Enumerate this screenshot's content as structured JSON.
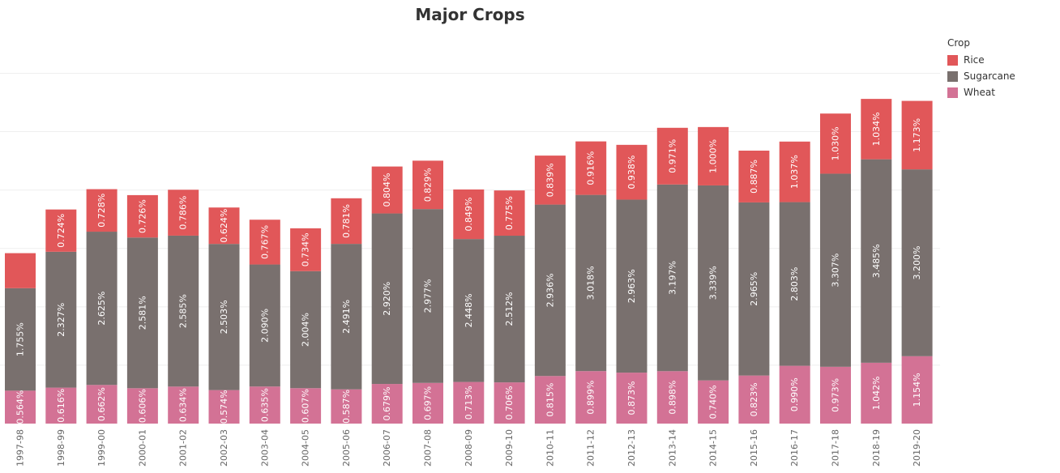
{
  "title": "Major Crops",
  "legend": {
    "title": "Crop",
    "items": [
      {
        "label": "Rice",
        "color": "#E15759"
      },
      {
        "label": "Sugarcane",
        "color": "#79706E"
      },
      {
        "label": "Wheat",
        "color": "#D37295"
      }
    ]
  },
  "chart_data": {
    "type": "bar",
    "stacked": true,
    "title": "Major Crops",
    "xlabel": "",
    "ylabel": "",
    "ylim": [
      0,
      6.7
    ],
    "grid": true,
    "legend_position": "right",
    "categories": [
      "1997-98",
      "1998-99",
      "1999-00",
      "2000-01",
      "2001-02",
      "2002-03",
      "2003-04",
      "2004-05",
      "2005-06",
      "2006-07",
      "2007-08",
      "2008-09",
      "2009-10",
      "2010-11",
      "2011-12",
      "2012-13",
      "2013-14",
      "2014-15",
      "2015-16",
      "2016-17",
      "2017-18",
      "2018-19",
      "2019-20"
    ],
    "series": [
      {
        "name": "Wheat",
        "color": "#D37295",
        "values": [
          0.564,
          0.616,
          0.662,
          0.606,
          0.634,
          0.574,
          0.635,
          0.607,
          0.587,
          0.679,
          0.697,
          0.713,
          0.706,
          0.815,
          0.899,
          0.873,
          0.898,
          0.74,
          0.823,
          0.99,
          0.973,
          1.042,
          1.154
        ],
        "labels": [
          "0.564%",
          "0.616%",
          "0.662%",
          "0.606%",
          "0.634%",
          "0.574%",
          "0.635%",
          "0.607%",
          "0.587%",
          "0.679%",
          "0.697%",
          "0.713%",
          "0.706%",
          "0.815%",
          "0.899%",
          "0.873%",
          "0.898%",
          "0.740%",
          "0.823%",
          "0.990%",
          "0.973%",
          "1.042%",
          "1.154%"
        ]
      },
      {
        "name": "Sugarcane",
        "color": "#79706E",
        "values": [
          1.755,
          2.327,
          2.625,
          2.581,
          2.585,
          2.503,
          2.09,
          2.004,
          2.491,
          2.92,
          2.977,
          2.448,
          2.512,
          2.936,
          3.018,
          2.963,
          3.197,
          3.339,
          2.965,
          2.803,
          3.307,
          3.485,
          3.2
        ],
        "labels": [
          "1.755%",
          "2.327%",
          "2.625%",
          "2.581%",
          "2.585%",
          "2.503%",
          "2.090%",
          "2.004%",
          "2.491%",
          "2.920%",
          "2.977%",
          "2.448%",
          "2.512%",
          "2.936%",
          "3.018%",
          "2.963%",
          "3.197%",
          "3.339%",
          "2.965%",
          "2.803%",
          "3.307%",
          "3.485%",
          "3.200%"
        ]
      },
      {
        "name": "Rice",
        "color": "#E15759",
        "values": [
          0.6,
          0.724,
          0.728,
          0.726,
          0.786,
          0.624,
          0.767,
          0.734,
          0.781,
          0.804,
          0.829,
          0.849,
          0.775,
          0.839,
          0.916,
          0.938,
          0.971,
          1.0,
          0.887,
          1.037,
          1.03,
          1.034,
          1.173
        ],
        "labels": [
          "",
          "0.724%",
          "0.728%",
          "0.726%",
          "0.786%",
          "0.624%",
          "0.767%",
          "0.734%",
          "0.781%",
          "0.804%",
          "0.829%",
          "0.849%",
          "0.775%",
          "0.839%",
          "0.916%",
          "0.938%",
          "0.971%",
          "1.000%",
          "0.887%",
          "1.037%",
          "1.030%",
          "1.034%",
          "1.173%"
        ]
      }
    ]
  }
}
